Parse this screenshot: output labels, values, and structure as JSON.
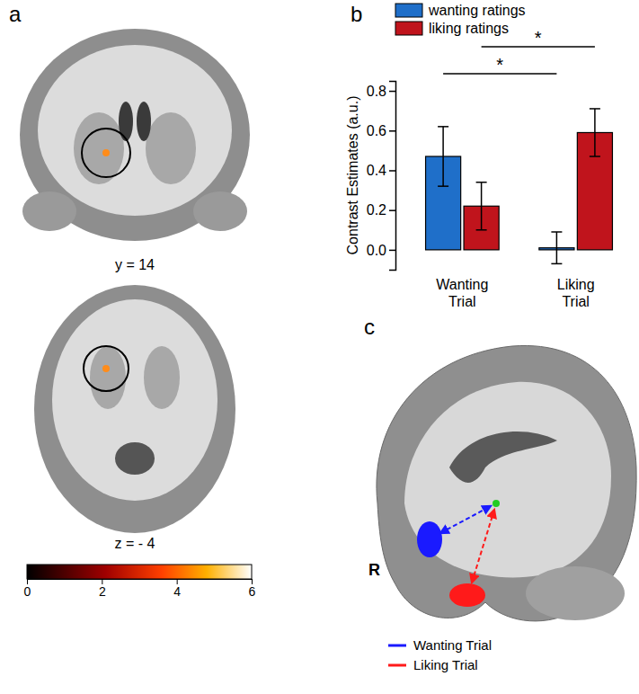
{
  "chart_data": {
    "type": "bar",
    "categories": [
      "Wanting Trial",
      "Liking Trial"
    ],
    "series": [
      {
        "name": "wanting ratings",
        "color": "#1f6fc9",
        "values": [
          0.47,
          0.01
        ],
        "errors": [
          0.15,
          0.08
        ]
      },
      {
        "name": "liking ratings",
        "color": "#c0141c",
        "values": [
          0.22,
          0.59
        ],
        "errors": [
          0.12,
          0.12
        ]
      }
    ],
    "y_label": "Contrast Estimates (a.u.)",
    "ylim": [
      -0.1,
      0.85
    ],
    "yticks": [
      {
        "value": 0,
        "label": "0.0"
      },
      {
        "value": 0.2,
        "label": "0.2"
      },
      {
        "value": 0.4,
        "label": "0.4"
      },
      {
        "value": 0.6,
        "label": "0.6"
      },
      {
        "value": 0.8,
        "label": "0.8"
      }
    ],
    "legend": "top",
    "annotations": [
      {
        "text": "*",
        "series": "wanting ratings"
      },
      {
        "text": "*",
        "series": "liking ratings"
      }
    ]
  },
  "panels": {
    "a": {
      "label": "a",
      "slices": [
        {
          "caption": "y = 14"
        },
        {
          "caption": "z = - 4"
        }
      ],
      "colorbar": {
        "range": [
          0,
          6
        ],
        "ticks": [
          0,
          2,
          4,
          6
        ]
      }
    },
    "b": {
      "label": "b"
    },
    "c": {
      "label": "c",
      "side": "R",
      "entries": [
        {
          "name": "Wanting Trial",
          "color": "#1a1aff"
        },
        {
          "name": "Liking Trial",
          "color": "#ff1a1a"
        }
      ]
    }
  }
}
